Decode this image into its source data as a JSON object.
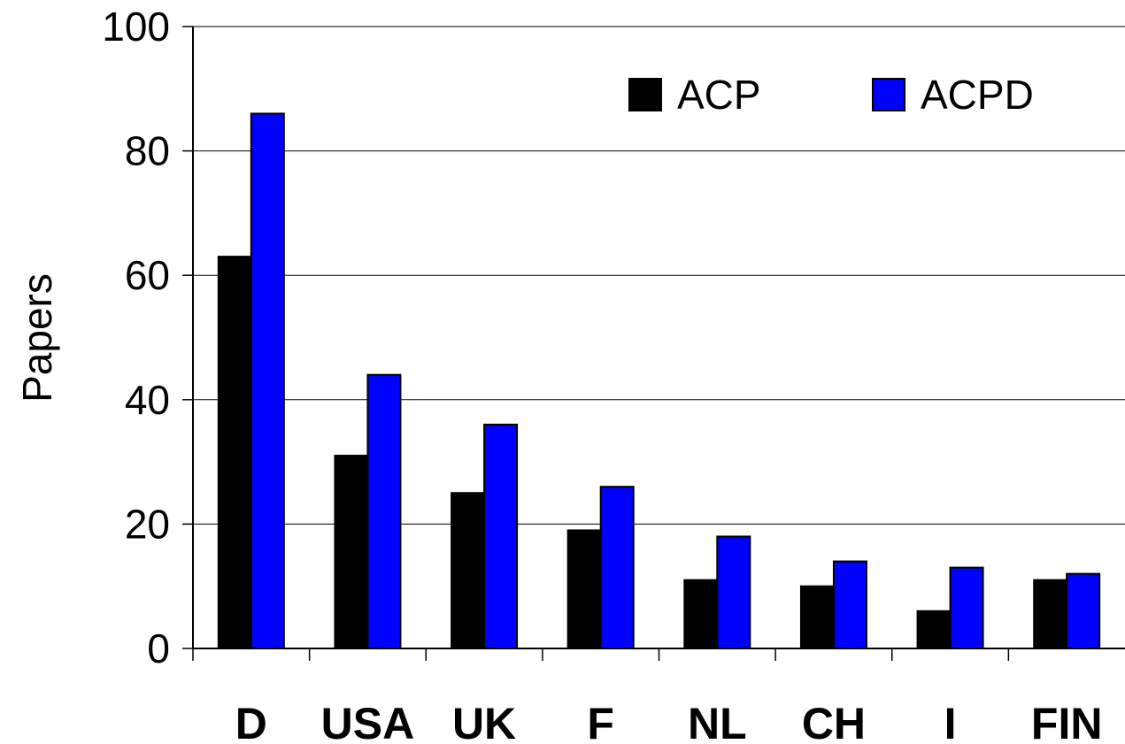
{
  "chart_data": {
    "type": "bar",
    "title": "",
    "xlabel": "",
    "ylabel": "Papers",
    "ylim": [
      0,
      100
    ],
    "yticks": [
      0,
      20,
      40,
      60,
      80,
      100
    ],
    "grid": true,
    "legend_position": "top-right",
    "categories": [
      "D",
      "USA",
      "UK",
      "F",
      "NL",
      "CH",
      "I",
      "FIN"
    ],
    "series": [
      {
        "name": "ACP",
        "color": "#000000",
        "values": [
          63,
          31,
          25,
          19,
          11,
          10,
          6,
          11
        ]
      },
      {
        "name": "ACPD",
        "color": "#0000ff",
        "values": [
          86,
          44,
          36,
          26,
          18,
          14,
          13,
          12
        ]
      }
    ]
  }
}
